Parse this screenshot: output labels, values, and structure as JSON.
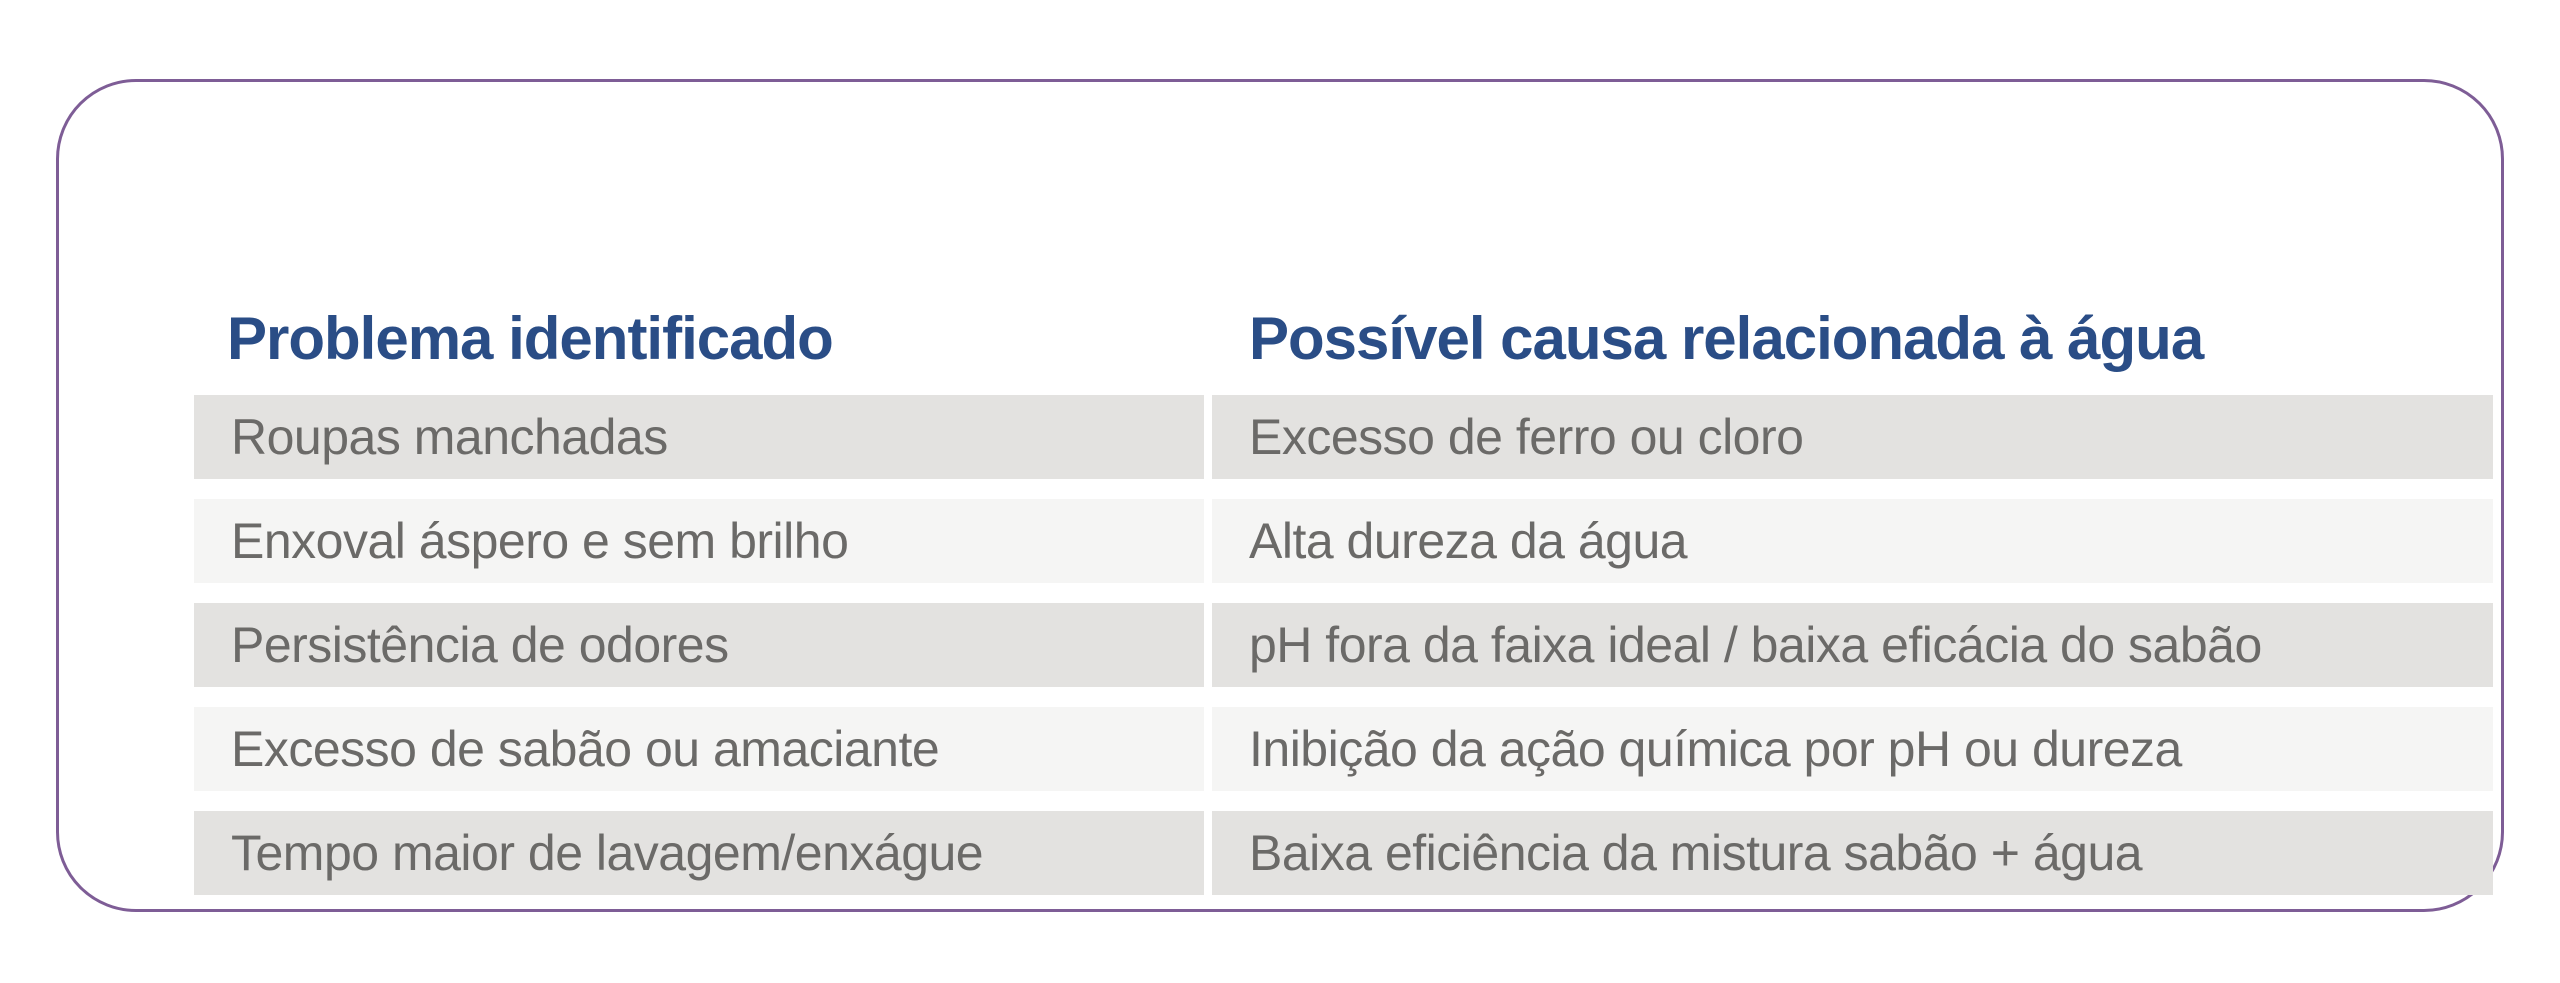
{
  "table": {
    "headers": [
      {
        "label": "Problema identificado"
      },
      {
        "label": "Possível causa relacionada à água"
      }
    ],
    "rows": [
      {
        "problem": "Roupas manchadas",
        "cause": "Excesso de ferro ou cloro"
      },
      {
        "problem": "Enxoval áspero e sem brilho",
        "cause": "Alta dureza da água"
      },
      {
        "problem": "Persistência de odores",
        "cause": "pH fora da faixa ideal / baixa eficácia do sabão"
      },
      {
        "problem": "Excesso de sabão ou amaciante",
        "cause": "Inibição da ação química por pH ou dureza"
      },
      {
        "problem": "Tempo maior de lavagem/enxágue",
        "cause": "Baixa eficiência da mistura sabão + água"
      }
    ]
  },
  "colors": {
    "header_text": "#2A4D86",
    "row_text": "#6B6A68",
    "row_bg_dark": "#E3E2E0",
    "row_bg_light": "#F5F5F4",
    "panel_border": "#7E5D96",
    "background": "#FFFFFF"
  }
}
